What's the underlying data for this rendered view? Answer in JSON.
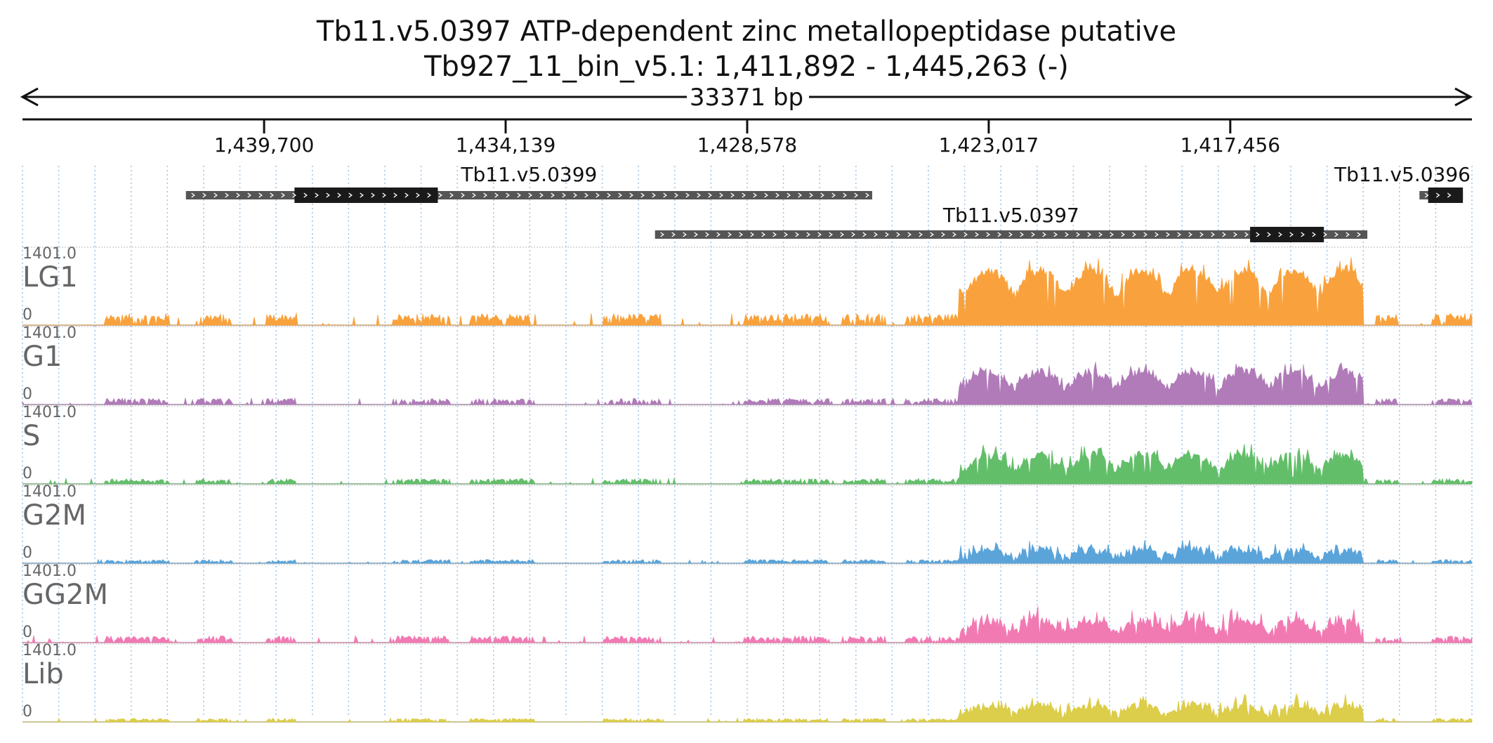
{
  "chart_data": {
    "type": "area",
    "title": "Tb11.v5.0397  ATP-dependent zinc metallopeptidase  putative",
    "subtitle": "Tb927_11_bin_v5.1: 1,411,892 - 1,445,263 (-)",
    "span_label": "33371 bp",
    "x_range": [
      1445263,
      1411892
    ],
    "x_reversed": true,
    "ticks": [
      "1,439,700",
      "1,434,139",
      "1,428,578",
      "1,423,017",
      "1,417,456"
    ],
    "tick_values": [
      1439700,
      1434139,
      1428578,
      1423017,
      1417456
    ],
    "genes": [
      {
        "name": "Tb11.v5.0399",
        "start": 1441500,
        "end": 1425700,
        "cds_start": 1439000,
        "cds_end": 1435700
      },
      {
        "name": "Tb11.v5.0397",
        "start": 1430700,
        "end": 1414300,
        "cds_start": 1417000,
        "cds_end": 1415300
      },
      {
        "name": "Tb11.v5.0396",
        "start": 1413100,
        "end": 1412100,
        "cds_start": 1412900,
        "cds_end": 1412100
      }
    ],
    "ylim": [
      0,
      1401.0
    ],
    "y_max_label": "1401.0",
    "y_zero_label": "0",
    "series": [
      {
        "name": "LG1",
        "color": "#f9a23d",
        "peak": 0.98,
        "level": 0.8,
        "base": 0.07,
        "gap_scale": 1.6
      },
      {
        "name": "G1",
        "color": "#b07bb8",
        "peak": 0.62,
        "level": 0.5,
        "base": 0.06,
        "gap_scale": 1.0
      },
      {
        "name": "S",
        "color": "#63be6a",
        "peak": 0.58,
        "level": 0.45,
        "base": 0.05,
        "gap_scale": 1.0
      },
      {
        "name": "G2M",
        "color": "#5aa4da",
        "peak": 0.36,
        "level": 0.24,
        "base": 0.04,
        "gap_scale": 0.9
      },
      {
        "name": "GG2M",
        "color": "#f27ab3",
        "peak": 0.52,
        "level": 0.35,
        "base": 0.05,
        "gap_scale": 1.3
      },
      {
        "name": "Lib",
        "color": "#dccd4a",
        "peak": 0.4,
        "level": 0.28,
        "base": 0.04,
        "gap_scale": 0.9
      }
    ],
    "grid": true
  }
}
